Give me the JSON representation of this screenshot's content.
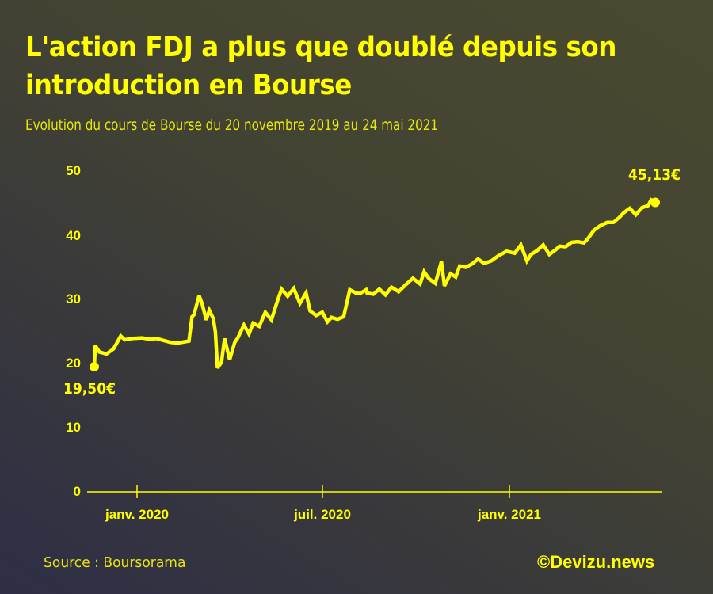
{
  "header": {
    "title": "L'action FDJ a plus que doublé depuis son introduction en Bourse",
    "subtitle": "Evolution du cours de Bourse du 20 novembre 2019 au 24 mai 2021"
  },
  "footer": {
    "source": "Source : Boursorama",
    "credit": "©Devizu.news"
  },
  "annotations": {
    "start_label": "19,50€",
    "end_label": "45,13€"
  },
  "axes": {
    "y_ticks": [
      "0",
      "10",
      "20",
      "30",
      "40",
      "50"
    ],
    "x_ticks": [
      "janv. 2020",
      "juil. 2020",
      "janv. 2021"
    ]
  },
  "colors": {
    "line": "#ffff00",
    "text": "#ffff00",
    "background_top_right": "#4a4a30",
    "background_bottom_left": "#2e2e46"
  },
  "chart_data": {
    "type": "line",
    "title": "L'action FDJ a plus que doublé depuis son introduction en Bourse",
    "subtitle": "Evolution du cours de Bourse du 20 novembre 2019 au 24 mai 2021",
    "xlabel": "",
    "ylabel": "",
    "ylim": [
      0,
      50
    ],
    "y_ticks": [
      0,
      10,
      20,
      30,
      40,
      50
    ],
    "x_ticks": [
      "janv. 2020",
      "juil. 2020",
      "janv. 2021"
    ],
    "grid": false,
    "legend": null,
    "annotations": [
      {
        "label": "19,50€",
        "x": "2019-11-20",
        "y": 19.5
      },
      {
        "label": "45,13€",
        "x": "2021-05-24",
        "y": 45.13
      }
    ],
    "series": [
      {
        "name": "FDJ (€)",
        "x": [
          "2019-11-20",
          "2019-11-21",
          "2019-11-25",
          "2019-12-02",
          "2019-12-09",
          "2019-12-16",
          "2019-12-20",
          "2019-12-27",
          "2020-01-06",
          "2020-01-13",
          "2020-01-20",
          "2020-01-27",
          "2020-02-03",
          "2020-02-10",
          "2020-02-17",
          "2020-02-21",
          "2020-02-24",
          "2020-02-26",
          "2020-03-02",
          "2020-03-05",
          "2020-03-09",
          "2020-03-12",
          "2020-03-16",
          "2020-03-18",
          "2020-03-20",
          "2020-03-24",
          "2020-03-27",
          "2020-04-01",
          "2020-04-06",
          "2020-04-09",
          "2020-04-15",
          "2020-04-20",
          "2020-04-24",
          "2020-04-30",
          "2020-05-06",
          "2020-05-12",
          "2020-05-18",
          "2020-05-22",
          "2020-05-28",
          "2020-06-03",
          "2020-06-09",
          "2020-06-15",
          "2020-06-19",
          "2020-06-25",
          "2020-07-01",
          "2020-07-06",
          "2020-07-10",
          "2020-07-16",
          "2020-07-22",
          "2020-07-28",
          "2020-08-03",
          "2020-08-07",
          "2020-08-13",
          "2020-08-14",
          "2020-08-20",
          "2020-08-26",
          "2020-09-01",
          "2020-09-07",
          "2020-09-14",
          "2020-09-21",
          "2020-09-28",
          "2020-10-05",
          "2020-10-09",
          "2020-10-14",
          "2020-10-20",
          "2020-10-26",
          "2020-10-29",
          "2020-11-04",
          "2020-11-09",
          "2020-11-13",
          "2020-11-19",
          "2020-11-25",
          "2020-12-01",
          "2020-12-07",
          "2020-12-14",
          "2020-12-21",
          "2020-12-29",
          "2021-01-06",
          "2021-01-12",
          "2021-01-18",
          "2021-01-22",
          "2021-01-28",
          "2021-02-03",
          "2021-02-09",
          "2021-02-15",
          "2021-02-19",
          "2021-02-25",
          "2021-03-03",
          "2021-03-09",
          "2021-03-15",
          "2021-03-19",
          "2021-03-25",
          "2021-03-31",
          "2021-04-07",
          "2021-04-13",
          "2021-04-19",
          "2021-04-23",
          "2021-04-29",
          "2021-05-05",
          "2021-05-11",
          "2021-05-17",
          "2021-05-20",
          "2021-05-24"
        ],
        "values": [
          19.5,
          22.8,
          21.8,
          21.5,
          22.3,
          24.3,
          23.7,
          23.9,
          24.0,
          23.8,
          23.9,
          23.6,
          23.3,
          23.2,
          23.4,
          23.5,
          27.3,
          27.6,
          30.6,
          29.3,
          26.8,
          28.3,
          27.0,
          24.9,
          19.3,
          20.2,
          23.9,
          20.6,
          23.3,
          24.0,
          26.0,
          24.6,
          26.3,
          25.8,
          28.0,
          26.8,
          29.8,
          31.6,
          30.5,
          31.7,
          29.4,
          31.0,
          28.2,
          27.5,
          28.0,
          26.5,
          27.2,
          26.9,
          27.3,
          31.5,
          31.0,
          30.9,
          31.5,
          31.0,
          30.8,
          31.6,
          30.7,
          31.9,
          31.2,
          32.3,
          33.3,
          32.4,
          34.3,
          33.2,
          32.5,
          35.9,
          32.1,
          34.0,
          33.5,
          35.2,
          35.0,
          35.5,
          36.3,
          35.6,
          36.0,
          36.8,
          37.5,
          37.2,
          38.5,
          36.0,
          37.0,
          37.6,
          38.5,
          37.0,
          37.7,
          38.3,
          38.2,
          38.9,
          39.0,
          38.8,
          39.5,
          40.8,
          41.5,
          42.0,
          42.0,
          42.8,
          43.5,
          44.2,
          43.2,
          44.3,
          44.6,
          45.5,
          45.13
        ]
      }
    ]
  }
}
